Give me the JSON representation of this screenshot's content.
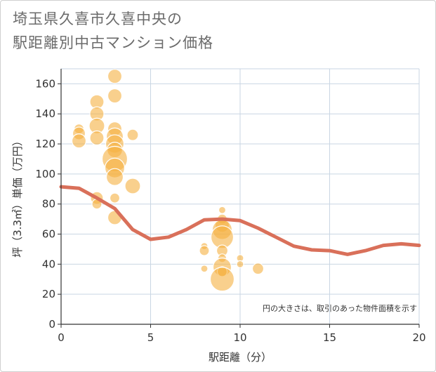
{
  "title": {
    "line1": "埼玉県久喜市久喜中央の",
    "line2": "駅距離別中古マンション価格"
  },
  "chart_data": {
    "type": "scatter",
    "title": "埼玉県久喜市久喜中央の駅距離別中古マンション価格",
    "xlabel": "駅距離（分）",
    "ylabel": "坪（3.3㎡）単価（万円）",
    "xlim": [
      0,
      20
    ],
    "ylim": [
      0,
      170
    ],
    "xticks": [
      0,
      5,
      10,
      15,
      20
    ],
    "yticks": [
      0,
      20,
      40,
      60,
      80,
      100,
      120,
      140,
      160
    ],
    "grid": true,
    "annotation": "円の大きさは、取引のあった物件面積を示す",
    "colors": {
      "bubble": "#f5b041",
      "line": "#d9705a",
      "grid": "#c9d6e3",
      "axis": "#333333"
    },
    "series": [
      {
        "type": "bubble",
        "points": [
          {
            "x": 1,
            "y": 130,
            "s": 7
          },
          {
            "x": 1,
            "y": 127,
            "s": 9
          },
          {
            "x": 1,
            "y": 122,
            "s": 10
          },
          {
            "x": 2,
            "y": 148,
            "s": 10
          },
          {
            "x": 2,
            "y": 140,
            "s": 10
          },
          {
            "x": 2,
            "y": 132,
            "s": 11
          },
          {
            "x": 2,
            "y": 124,
            "s": 10
          },
          {
            "x": 2,
            "y": 84,
            "s": 9
          },
          {
            "x": 2,
            "y": 80,
            "s": 7
          },
          {
            "x": 3,
            "y": 165,
            "s": 10
          },
          {
            "x": 3,
            "y": 152,
            "s": 10
          },
          {
            "x": 3,
            "y": 130,
            "s": 10
          },
          {
            "x": 3,
            "y": 125,
            "s": 12
          },
          {
            "x": 3,
            "y": 120,
            "s": 13
          },
          {
            "x": 3,
            "y": 116,
            "s": 11
          },
          {
            "x": 3,
            "y": 110,
            "s": 18
          },
          {
            "x": 3,
            "y": 104,
            "s": 14
          },
          {
            "x": 3,
            "y": 98,
            "s": 12
          },
          {
            "x": 3,
            "y": 84,
            "s": 7
          },
          {
            "x": 3,
            "y": 71,
            "s": 10
          },
          {
            "x": 4,
            "y": 126,
            "s": 8
          },
          {
            "x": 4,
            "y": 92,
            "s": 11
          },
          {
            "x": 8,
            "y": 52,
            "s": 5
          },
          {
            "x": 8,
            "y": 49,
            "s": 7
          },
          {
            "x": 8,
            "y": 37,
            "s": 5
          },
          {
            "x": 9,
            "y": 76,
            "s": 5
          },
          {
            "x": 9,
            "y": 70,
            "s": 7
          },
          {
            "x": 9,
            "y": 66,
            "s": 10
          },
          {
            "x": 9,
            "y": 63,
            "s": 14
          },
          {
            "x": 9,
            "y": 58,
            "s": 16
          },
          {
            "x": 9,
            "y": 49,
            "s": 8
          },
          {
            "x": 9,
            "y": 44,
            "s": 6
          },
          {
            "x": 9,
            "y": 38,
            "s": 13
          },
          {
            "x": 9,
            "y": 35,
            "s": 7
          },
          {
            "x": 9,
            "y": 30,
            "s": 17
          },
          {
            "x": 10,
            "y": 44,
            "s": 5
          },
          {
            "x": 10,
            "y": 40,
            "s": 5
          },
          {
            "x": 11,
            "y": 37,
            "s": 8
          }
        ]
      },
      {
        "type": "line",
        "x": [
          0,
          1,
          2,
          3,
          4,
          5,
          6,
          7,
          8,
          9,
          10,
          11,
          12,
          13,
          14,
          15,
          16,
          17,
          18,
          19,
          20
        ],
        "y": [
          91.5,
          90.5,
          84,
          77,
          63,
          56.5,
          58,
          63,
          69.5,
          70,
          69,
          64,
          58,
          52,
          49.5,
          49,
          46.5,
          49,
          52.5,
          53.5,
          52.5
        ]
      }
    ]
  }
}
